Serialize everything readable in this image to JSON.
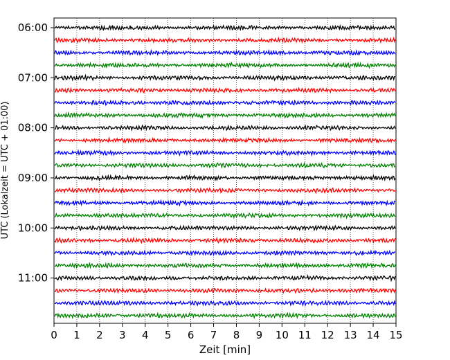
{
  "chart_data": {
    "type": "line",
    "title": "",
    "xlabel": "Zeit  [min]",
    "ylabel": "UTC (Lokalzeit = UTC + 01:00)",
    "xlim": [
      0,
      15
    ],
    "x_ticks": [
      "0",
      "1",
      "2",
      "3",
      "4",
      "5",
      "6",
      "7",
      "8",
      "9",
      "10",
      "11",
      "12",
      "13",
      "14",
      "15"
    ],
    "y_ticks": [
      "06:00",
      "07:00",
      "08:00",
      "09:00",
      "10:00",
      "11:00"
    ],
    "grid": "vertical dotted at each minute",
    "minutes_per_trace": 15,
    "trace_color_cycle": [
      "#000000",
      "#ff0000",
      "#0000ff",
      "#008000"
    ],
    "traces": [
      {
        "start": "06:00",
        "color": "#000000"
      },
      {
        "start": "06:15",
        "color": "#ff0000"
      },
      {
        "start": "06:30",
        "color": "#0000ff"
      },
      {
        "start": "06:45",
        "color": "#008000"
      },
      {
        "start": "07:00",
        "color": "#000000"
      },
      {
        "start": "07:15",
        "color": "#ff0000"
      },
      {
        "start": "07:30",
        "color": "#0000ff"
      },
      {
        "start": "07:45",
        "color": "#008000"
      },
      {
        "start": "08:00",
        "color": "#000000"
      },
      {
        "start": "08:15",
        "color": "#ff0000"
      },
      {
        "start": "08:30",
        "color": "#0000ff"
      },
      {
        "start": "08:45",
        "color": "#008000"
      },
      {
        "start": "09:00",
        "color": "#000000"
      },
      {
        "start": "09:15",
        "color": "#ff0000"
      },
      {
        "start": "09:30",
        "color": "#0000ff"
      },
      {
        "start": "09:45",
        "color": "#008000"
      },
      {
        "start": "10:00",
        "color": "#000000"
      },
      {
        "start": "10:15",
        "color": "#ff0000"
      },
      {
        "start": "10:30",
        "color": "#0000ff"
      },
      {
        "start": "10:45",
        "color": "#008000"
      },
      {
        "start": "11:00",
        "color": "#000000"
      },
      {
        "start": "11:15",
        "color": "#ff0000"
      },
      {
        "start": "11:30",
        "color": "#0000ff"
      },
      {
        "start": "11:45",
        "color": "#008000"
      }
    ]
  }
}
